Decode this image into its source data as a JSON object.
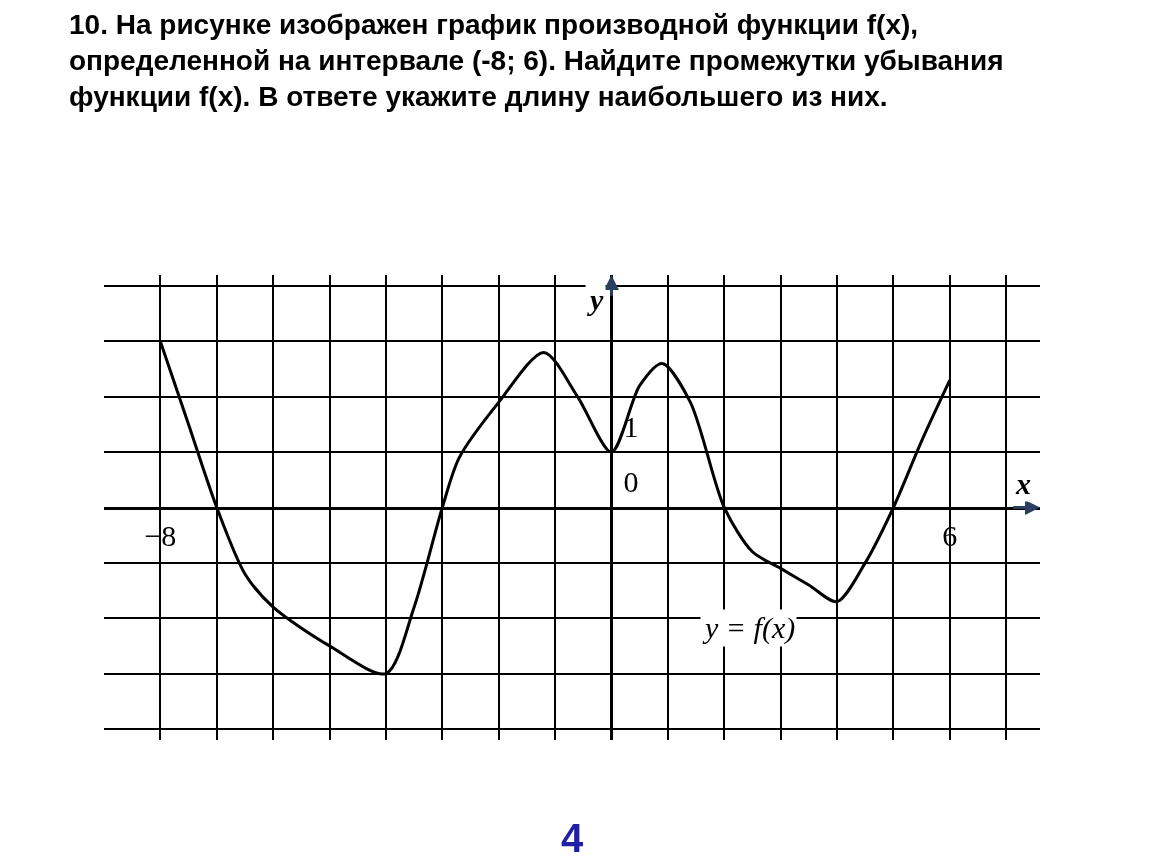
{
  "chart_data": {
    "type": "line",
    "title": "10. На рисунке изображен график производной функции f(x), определенной на интервале (-8; 6). Найдите промежутки убывания функции f(x). В ответе укажите длину наибольшего из них.",
    "xlabel": "x",
    "ylabel": "y",
    "x": [
      -8,
      -7.5,
      -7,
      -6.5,
      -6,
      -5,
      -4,
      -3.5,
      -3,
      -2.7,
      -2,
      -1.2,
      -0.6,
      0,
      0.5,
      0.9,
      1.4,
      2,
      2.5,
      3,
      3.5,
      4,
      4.5,
      5,
      5.5,
      6
    ],
    "series": [
      {
        "color": "#000000",
        "values": [
          3,
          1.5,
          0,
          -1.2,
          -1.8,
          -2.5,
          -3,
          -1.8,
          0,
          0.9,
          1.9,
          2.8,
          2,
          1,
          2.2,
          2.6,
          1.9,
          0,
          -0.8,
          -1.1,
          -1.4,
          -1.7,
          -1,
          0,
          1.2,
          2.3
        ]
      }
    ],
    "xlim": [
      -9,
      7.6
    ],
    "ylim": [
      -4.2,
      4.2
    ],
    "xticks": [
      {
        "value": -8,
        "label": "−8"
      },
      {
        "value": -7,
        "label": null
      },
      {
        "value": -6,
        "label": null
      },
      {
        "value": -5,
        "label": null
      },
      {
        "value": -4,
        "label": null
      },
      {
        "value": -3,
        "label": null
      },
      {
        "value": -2,
        "label": null
      },
      {
        "value": -1,
        "label": null
      },
      {
        "value": 0,
        "label": null
      },
      {
        "value": 1,
        "label": null
      },
      {
        "value": 2,
        "label": null
      },
      {
        "value": 3,
        "label": null
      },
      {
        "value": 4,
        "label": null
      },
      {
        "value": 5,
        "label": null
      },
      {
        "value": 6,
        "label": "6"
      },
      {
        "value": 7,
        "label": null
      }
    ],
    "yticks": [
      {
        "value": -4,
        "label": null
      },
      {
        "value": -3,
        "label": null
      },
      {
        "value": -2,
        "label": null
      },
      {
        "value": -1,
        "label": null
      },
      {
        "value": 0,
        "label": "0"
      },
      {
        "value": 1,
        "label": "1"
      },
      {
        "value": 2,
        "label": null
      },
      {
        "value": 3,
        "label": null
      },
      {
        "value": 4,
        "label": null
      }
    ],
    "grid": true,
    "legend": false,
    "annotations": [
      "y = f(x)",
      "4"
    ]
  }
}
